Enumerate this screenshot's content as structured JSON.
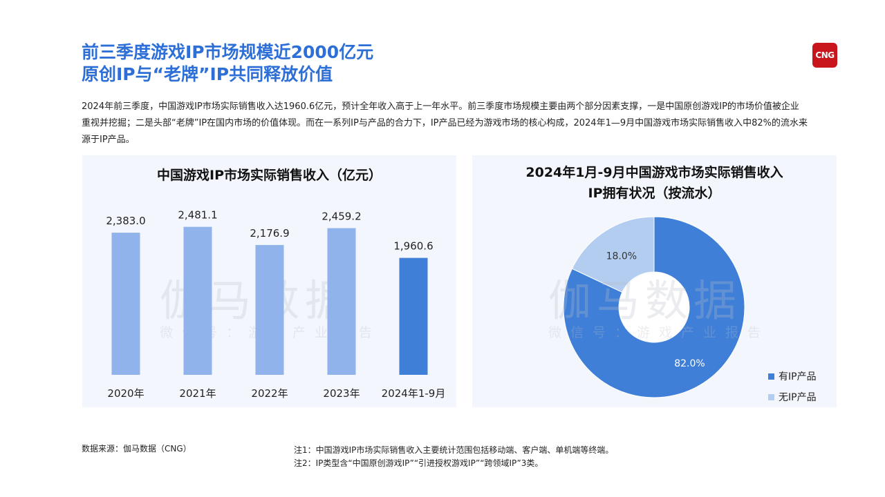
{
  "header": {
    "title_line1": "前三季度游戏IP市场规模近2000亿元",
    "title_line2": "原创IP与“老牌”IP共同释放价值",
    "logo_text": "CNG"
  },
  "intro": "2024年前三季度，中国游戏IP市场实际销售收入达1960.6亿元，预计全年收入高于上一年水平。前三季度市场规模主要由两个部分因素支撑，一是中国原创游戏IP的市场价值被企业重视并挖掘；二是头部“老牌”IP在国内市场的价值体现。而在一系列IP与产品的合力下，IP产品已经为游戏市场的核心构成，2024年1—9月中国游戏市场实际销售收入中82%的流水来源于IP产品。",
  "watermark": {
    "main": "伽马数据",
    "sub": "微信号：游戏产业报告"
  },
  "chart_data": [
    {
      "type": "bar",
      "title": "中国游戏IP市场实际销售收入（亿元）",
      "categories": [
        "2020年",
        "2021年",
        "2022年",
        "2023年",
        "2024年1-9月"
      ],
      "values": [
        2383.0,
        2481.1,
        2176.9,
        2459.2,
        1960.6
      ],
      "value_labels": [
        "2,383.0",
        "2,481.1",
        "2,176.9",
        "2,459.2",
        "1,960.6"
      ],
      "colors": [
        "#8fb3ea",
        "#8fb3ea",
        "#8fb3ea",
        "#8fb3ea",
        "#3f7fd8"
      ],
      "ylim": [
        0,
        2500
      ],
      "grid": false
    },
    {
      "type": "pie",
      "donut": true,
      "title_line1": "2024年1月-9月中国游戏市场实际销售收入",
      "title_line2": "IP拥有状况（按流水）",
      "slices": [
        {
          "label": "有IP产品",
          "value": 82.0,
          "display": "82.0%",
          "color": "#3f7fd8"
        },
        {
          "label": "无IP产品",
          "value": 18.0,
          "display": "18.0%",
          "color": "#b3cdf0"
        }
      ],
      "legend_position": "bottom-right"
    }
  ],
  "footer": {
    "source": "数据来源：伽马数据（CNG）",
    "note1": "注1：中国游戏IP市场实际销售收入主要统计范围包括移动端、客户端、单机端等终端。",
    "note2": "注2：IP类型含“中国原创游戏IP”“引进授权游戏IP”“跨领域IP”3类。"
  }
}
